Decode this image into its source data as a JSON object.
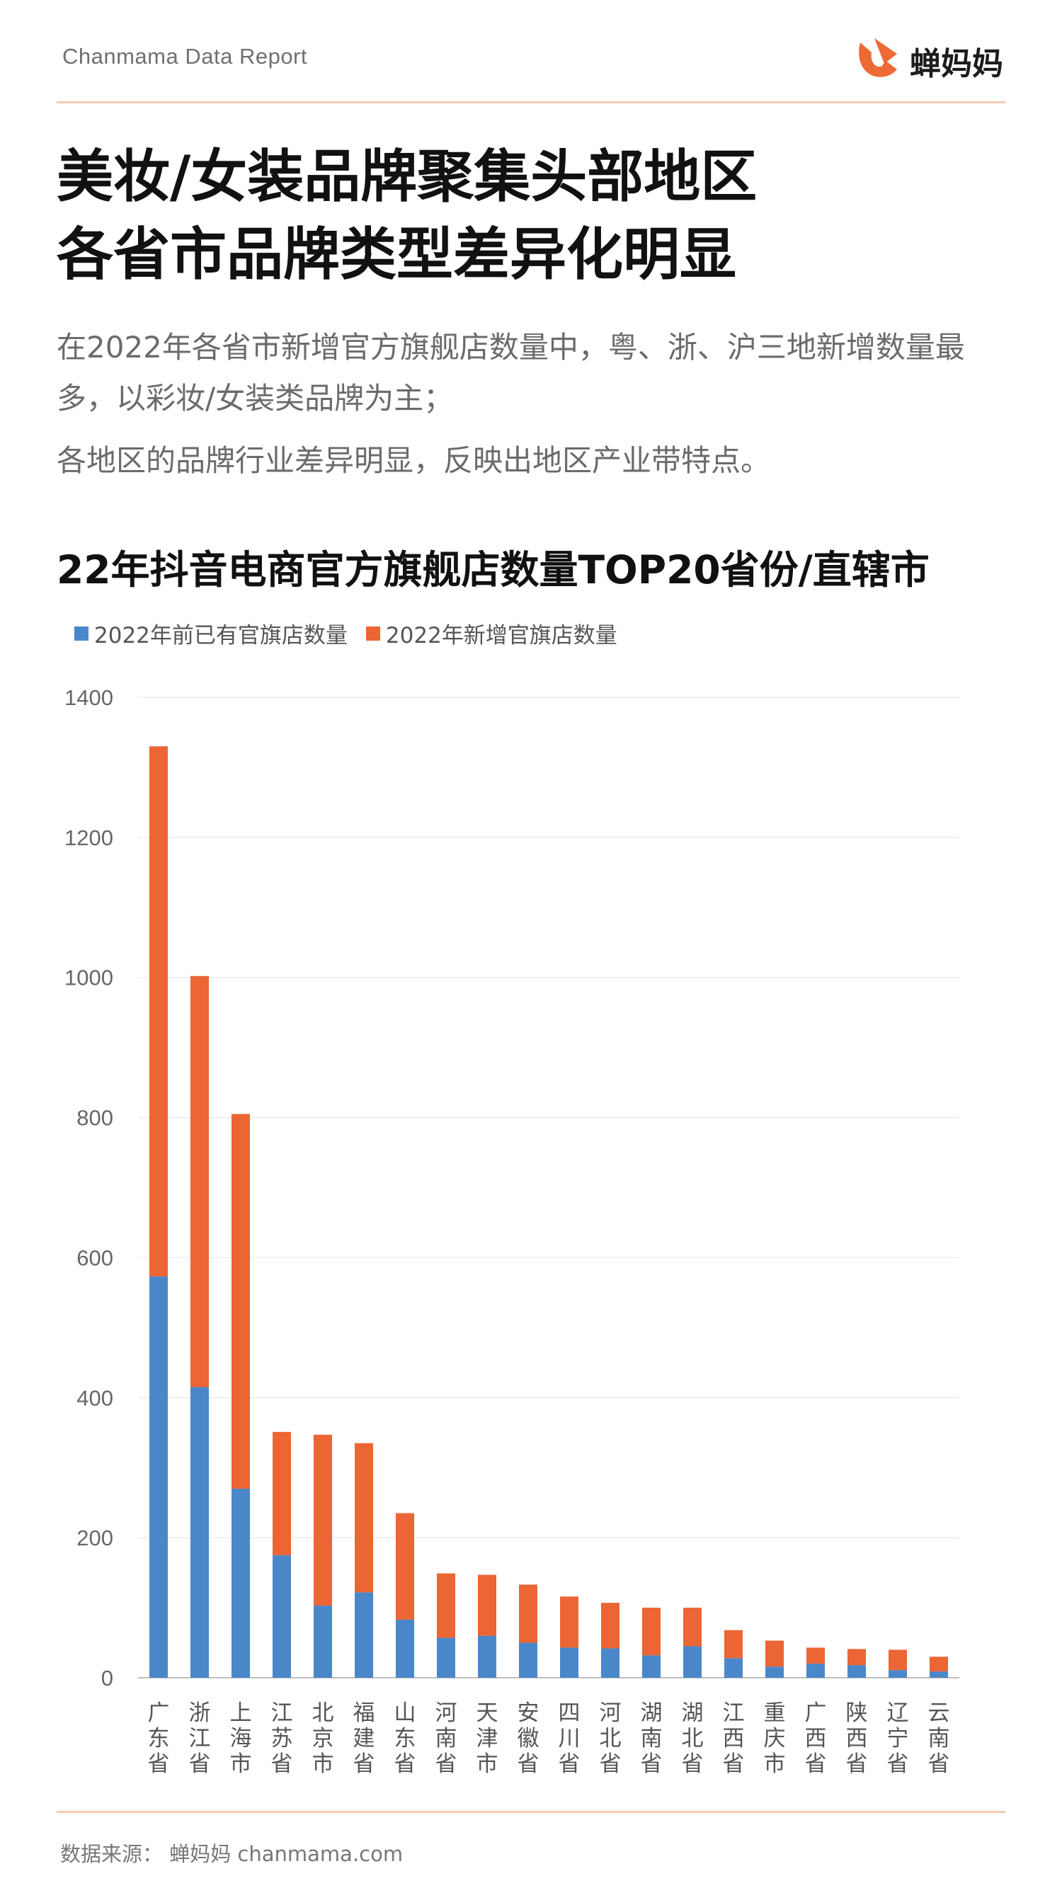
{
  "header": {
    "brand": "Chanmama Data Report",
    "logo_text": "蝉妈妈"
  },
  "headline": {
    "line1": "美妆/女装品牌聚集头部地区",
    "line2": "各省市品牌类型差异化明显"
  },
  "summary": {
    "para1": "在2022年各省市新增官方旗舰店数量中，粤、浙、沪三地新增数量最多，以彩妆/女装类品牌为主；",
    "para2": "各地区的品牌行业差异明显，反映出地区产业带特点。"
  },
  "footer": {
    "source": "数据来源： 蝉妈妈 chanmama.com"
  },
  "colors": {
    "existing": "#4a87c9",
    "new": "#ec6534",
    "accent": "#ee6a34"
  },
  "chart_data": {
    "type": "bar",
    "stacked": true,
    "title": "22年抖音电商官方旗舰店数量TOP20省份/直辖市",
    "categories": [
      "广东省",
      "浙江省",
      "上海市",
      "江苏省",
      "北京市",
      "福建省",
      "山东省",
      "河南省",
      "天津市",
      "安徽省",
      "四川省",
      "河北省",
      "湖南省",
      "湖北省",
      "江西省",
      "重庆市",
      "广西省",
      "陕西省",
      "辽宁省",
      "云南省"
    ],
    "series": [
      {
        "name": "2022年前已有官旗店数量",
        "color": "#4a87c9",
        "values": [
          573,
          415,
          270,
          175,
          103,
          122,
          83,
          57,
          60,
          50,
          43,
          42,
          32,
          45,
          28,
          16,
          20,
          18,
          11,
          9
        ]
      },
      {
        "name": "2022年新增官旗店数量",
        "color": "#ec6534",
        "values": [
          757,
          587,
          535,
          176,
          244,
          213,
          152,
          92,
          87,
          83,
          73,
          65,
          68,
          55,
          40,
          37,
          23,
          23,
          29,
          21
        ]
      }
    ],
    "ylim": [
      0,
      1400
    ],
    "yticks": [
      0,
      200,
      400,
      600,
      800,
      1000,
      1200,
      1400
    ],
    "grid": true,
    "legend_position": "top-left"
  }
}
